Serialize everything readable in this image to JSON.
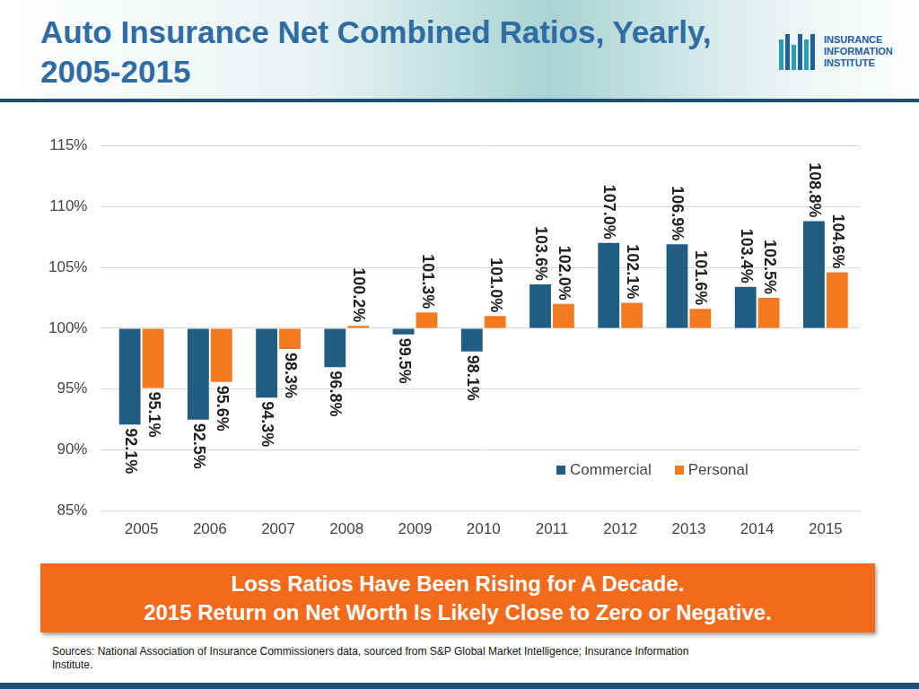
{
  "header": {
    "logo": [
      "INSURANCE",
      "INFORMATION",
      "INSTITUTE"
    ]
  },
  "chart_data": {
    "type": "bar",
    "title": "Auto Insurance Net Combined Ratios, Yearly, 2005-2015",
    "categories": [
      "2005",
      "2006",
      "2007",
      "2008",
      "2009",
      "2010",
      "2011",
      "2012",
      "2013",
      "2014",
      "2015"
    ],
    "baseline": 100,
    "series": [
      {
        "name": "Commercial",
        "color": "#215d82",
        "values": [
          92.1,
          92.5,
          94.3,
          96.8,
          99.5,
          98.1,
          103.6,
          107.0,
          106.9,
          103.4,
          108.8
        ],
        "value_labels": [
          "92.1%",
          "92.5%",
          "94.3%",
          "96.8%",
          "99.5%",
          "98.1%",
          "103.6%",
          "107.0%",
          "106.9%",
          "103.4%",
          "108.8%"
        ]
      },
      {
        "name": "Personal",
        "color": "#f47920",
        "values": [
          95.1,
          95.6,
          98.3,
          100.2,
          101.3,
          101.0,
          102.0,
          102.1,
          101.6,
          102.5,
          104.6
        ],
        "value_labels": [
          "95.1%",
          "95.6%",
          "98.3%",
          "100.2%",
          "101.3%",
          "101.0%",
          "102.0%",
          "102.1%",
          "101.6%",
          "102.5%",
          "104.6%"
        ]
      }
    ],
    "ylim": [
      85,
      115
    ],
    "yticks": [
      {
        "value": 85,
        "label": "85%"
      },
      {
        "value": 90,
        "label": "90%"
      },
      {
        "value": 95,
        "label": "95%"
      },
      {
        "value": 100,
        "label": "100%"
      },
      {
        "value": 105,
        "label": "105%"
      },
      {
        "value": 110,
        "label": "110%"
      },
      {
        "value": 115,
        "label": "115%"
      }
    ],
    "grid": true,
    "legend": "lower right",
    "data_labels": true
  },
  "banner": [
    "Loss Ratios Have Been Rising for A Decade.",
    "2015 Return on Net Worth Is Likely Close to Zero or Negative."
  ],
  "sources": "Sources: National Association of Insurance Commissioners data, sourced from S&P Global Market Intelligence; Insurance Information Institute."
}
